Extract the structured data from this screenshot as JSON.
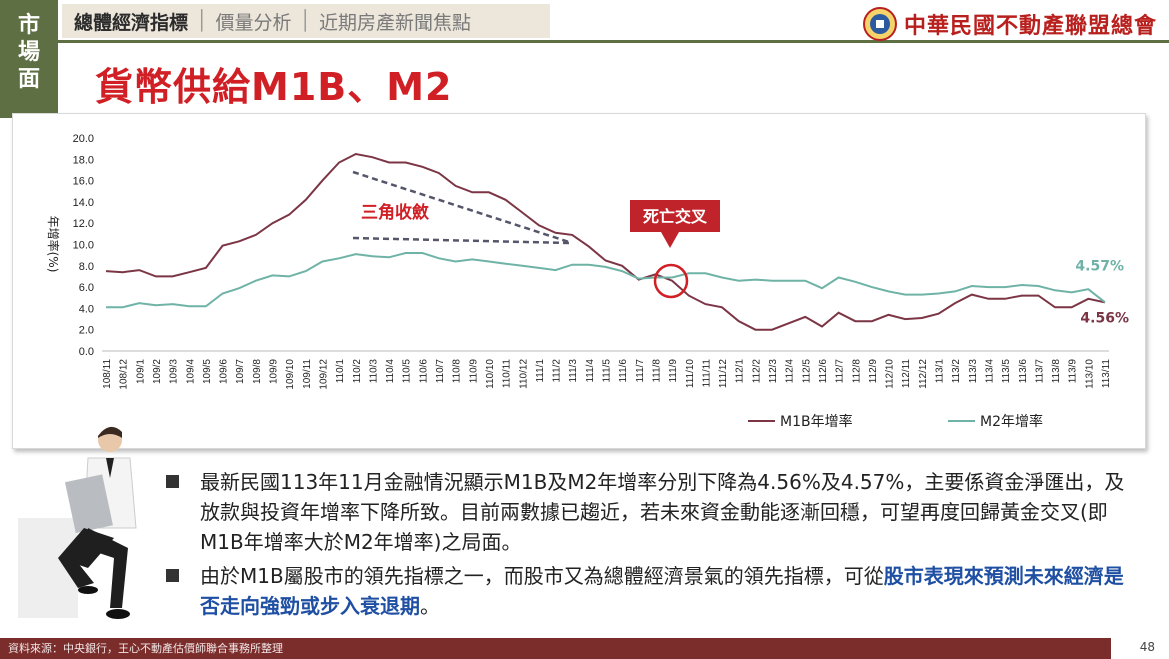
{
  "side_tab": {
    "chars": [
      "市",
      "場",
      "面"
    ]
  },
  "nav": {
    "active": "總體經濟指標",
    "item2": "價量分析",
    "item3": "近期房產新聞焦點",
    "separator": "│"
  },
  "logo": {
    "text": "中華民國不動產聯盟總會"
  },
  "title": "貨幣供給M1B、M2",
  "chart_data": {
    "type": "line",
    "ylabel": "年增率(%)",
    "ylim": [
      0,
      20
    ],
    "yticks": [
      "0.0",
      "2.0",
      "4.0",
      "6.0",
      "8.0",
      "10.0",
      "12.0",
      "14.0",
      "16.0",
      "18.0",
      "20.0"
    ],
    "grid": false,
    "legend_position": "bottom-right",
    "categories": [
      "108/11",
      "108/12",
      "109/1",
      "109/2",
      "109/3",
      "109/4",
      "109/5",
      "109/6",
      "109/7",
      "109/8",
      "109/9",
      "109/10",
      "109/11",
      "109/12",
      "110/1",
      "110/2",
      "110/3",
      "110/4",
      "110/5",
      "110/6",
      "110/7",
      "110/8",
      "110/9",
      "110/10",
      "110/11",
      "110/12",
      "111/1",
      "111/2",
      "111/3",
      "111/4",
      "111/5",
      "111/6",
      "111/7",
      "111/8",
      "111/9",
      "111/10",
      "111/11",
      "111/12",
      "112/1",
      "112/2",
      "112/3",
      "112/4",
      "112/5",
      "112/6",
      "112/7",
      "112/8",
      "112/9",
      "112/10",
      "112/11",
      "112/12",
      "113/1",
      "113/2",
      "113/3",
      "113/4",
      "113/5",
      "113/6",
      "113/7",
      "113/8",
      "113/9",
      "113/10",
      "113/11"
    ],
    "series": [
      {
        "name": "M1B年增率",
        "color": "#7b3545",
        "values": [
          7.5,
          7.4,
          7.6,
          7.0,
          7.0,
          7.4,
          7.8,
          9.9,
          10.3,
          10.9,
          12.0,
          12.8,
          14.2,
          16.0,
          17.7,
          18.5,
          18.2,
          17.7,
          17.7,
          17.3,
          16.7,
          15.5,
          14.9,
          14.9,
          14.2,
          13.0,
          11.8,
          11.1,
          10.9,
          9.8,
          8.5,
          8.0,
          6.7,
          7.2,
          6.6,
          5.2,
          4.4,
          4.1,
          2.8,
          2.0,
          2.0,
          2.6,
          3.2,
          2.3,
          3.6,
          2.8,
          2.8,
          3.4,
          3.0,
          3.1,
          3.5,
          4.5,
          5.3,
          4.9,
          4.9,
          5.2,
          5.2,
          4.1,
          4.1,
          4.9,
          4.56
        ]
      },
      {
        "name": "M2年增率",
        "color": "#6fb3a7",
        "values": [
          4.1,
          4.1,
          4.5,
          4.3,
          4.4,
          4.2,
          4.2,
          5.4,
          5.9,
          6.6,
          7.1,
          7.0,
          7.5,
          8.4,
          8.7,
          9.1,
          8.9,
          8.8,
          9.2,
          9.2,
          8.7,
          8.4,
          8.6,
          8.4,
          8.2,
          8.0,
          7.8,
          7.6,
          8.1,
          8.1,
          7.9,
          7.5,
          6.8,
          6.9,
          6.9,
          7.3,
          7.3,
          6.9,
          6.6,
          6.7,
          6.6,
          6.6,
          6.6,
          5.9,
          6.9,
          6.5,
          6.0,
          5.6,
          5.3,
          5.3,
          5.4,
          5.6,
          6.1,
          6.0,
          6.0,
          6.2,
          6.1,
          5.7,
          5.5,
          5.8,
          4.57
        ]
      }
    ],
    "end_labels": [
      "4.57%",
      "4.56%"
    ],
    "annotations": {
      "triangle": "三角收斂",
      "cross": "死亡交叉"
    }
  },
  "bullets": [
    {
      "text": "最新民國113年11月金融情況顯示M1B及M2年增率分別下降為4.56%及4.57%，主要係資金淨匯出，及放款與投資年增率下降所致。目前兩數據已趨近，若未來資金動能逐漸回穩，可望再度回歸黃金交叉(即M1B年增率大於M2年增率)之局面。"
    },
    {
      "text": "由於M1B屬股市的領先指標之一，而股市又為總體經濟景氣的領先指標，可從",
      "highlight": "股市表現來預測未來經濟是否走向強勁或步入衰退期",
      "suffix": "。"
    }
  ],
  "footer": "資料來源：中央銀行，王心不動產估價師聯合事務所整理",
  "page_number": "48"
}
